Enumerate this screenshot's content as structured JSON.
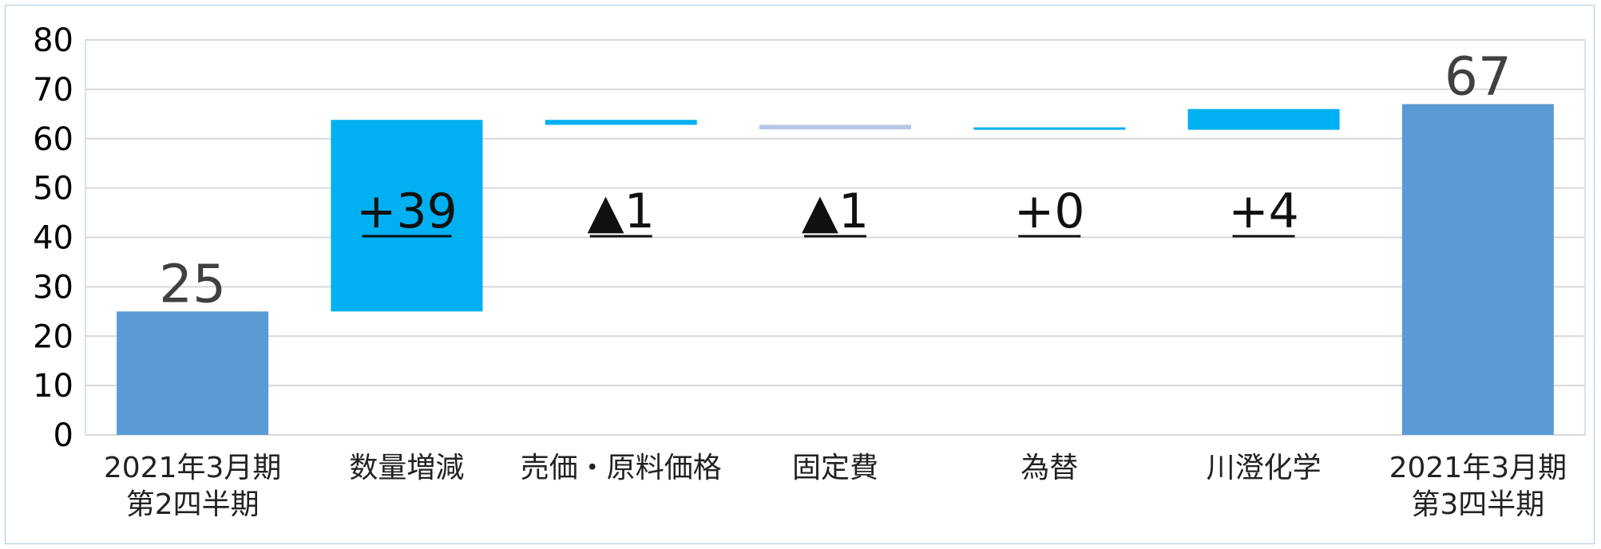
{
  "chart_data": {
    "type": "bar",
    "ylim": [
      0,
      80
    ],
    "yticks": [
      "0",
      "10",
      "20",
      "30",
      "40",
      "50",
      "60",
      "70",
      "80"
    ],
    "grid": true,
    "colors": {
      "total": "#5b9bd5",
      "delta": "#00b0f0",
      "delta_alt": "#b4c7e7",
      "grid": "#d9d9d9"
    },
    "categories": [
      [
        "2021年3月期",
        "第2四半期"
      ],
      [
        "数量増減"
      ],
      [
        "売価・原料価格"
      ],
      [
        "固定費"
      ],
      [
        "為替"
      ],
      [
        "川澄化学"
      ],
      [
        "2021年3月期",
        "第3四半期"
      ]
    ],
    "bars": [
      {
        "kind": "total",
        "start": 0,
        "end": 25,
        "label": "25",
        "color": "#5b9bd5"
      },
      {
        "kind": "delta",
        "start": 25,
        "end": 63.8,
        "label": "+39",
        "color": "#00b0f0"
      },
      {
        "kind": "delta",
        "start": 62.8,
        "end": 63.8,
        "label": "▲1",
        "color": "#00b0f0"
      },
      {
        "kind": "delta",
        "start": 61.9,
        "end": 62.8,
        "label": "▲1",
        "color": "#b4c7e7"
      },
      {
        "kind": "delta",
        "start": 61.8,
        "end": 62.0,
        "label": "+0",
        "color": "#00b0f0"
      },
      {
        "kind": "delta",
        "start": 61.8,
        "end": 66.0,
        "label": "+4",
        "color": "#00b0f0"
      },
      {
        "kind": "total",
        "start": 0,
        "end": 67,
        "label": "67",
        "color": "#5b9bd5"
      }
    ]
  }
}
